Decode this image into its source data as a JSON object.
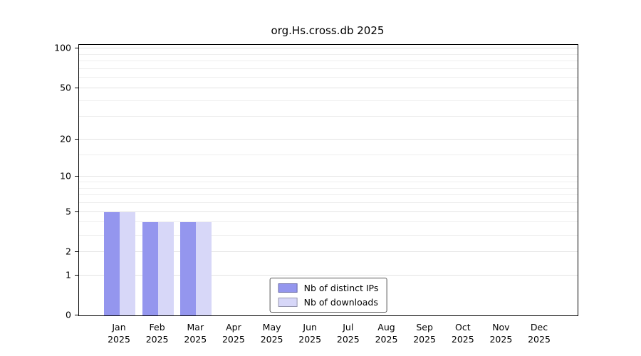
{
  "page": {
    "background": "#ffffff"
  },
  "chart_data": {
    "type": "bar",
    "title": "org.Hs.cross.db 2025",
    "categories": [
      "Jan",
      "Feb",
      "Mar",
      "Apr",
      "May",
      "Jun",
      "Jul",
      "Aug",
      "Sep",
      "Oct",
      "Nov",
      "Dec"
    ],
    "x_year_label": "2025",
    "series": [
      {
        "name": "Nb of distinct IPs",
        "color": "#9496ee",
        "values": [
          5,
          4,
          4,
          0,
          0,
          0,
          0,
          0,
          0,
          0,
          0,
          0
        ]
      },
      {
        "name": "Nb of downloads",
        "color": "#d7d7f8",
        "values": [
          5,
          4,
          4,
          0,
          0,
          0,
          0,
          0,
          0,
          0,
          0,
          0
        ]
      }
    ],
    "y_axis": {
      "scale": "log(1+v)",
      "ticks": [
        0,
        1,
        2,
        5,
        10,
        20,
        50,
        100
      ],
      "minor_ticks": [
        3,
        4,
        6,
        7,
        8,
        9,
        15,
        30,
        40,
        60,
        70,
        80,
        90
      ],
      "ylim": [
        0,
        100
      ]
    },
    "xlabel": "",
    "ylabel": "",
    "grid": true,
    "legend": {
      "position": "bottom-center",
      "entries": [
        "Nb of distinct IPs",
        "Nb of downloads"
      ]
    }
  }
}
